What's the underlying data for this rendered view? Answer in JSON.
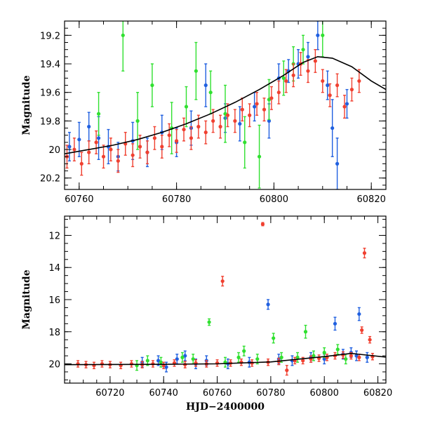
{
  "chart_data": [
    {
      "type": "scatter",
      "panel": "top",
      "xlabel": "",
      "ylabel": "Magnitude",
      "xlim": [
        60757,
        60823
      ],
      "ylim": [
        20.28,
        19.1
      ],
      "inverted_y": true,
      "x_ticks": [
        60760,
        60780,
        60800,
        60820
      ],
      "y_ticks": [
        19.2,
        19.4,
        19.6,
        19.8,
        20,
        20.2
      ],
      "model_curve": {
        "color": "#000000",
        "x": [
          60757,
          60762,
          60767,
          60772,
          60777,
          60782,
          60787,
          60792,
          60797,
          60802,
          60806,
          60809,
          60812,
          60816,
          60820,
          60823
        ],
        "y": [
          20.03,
          20.0,
          19.97,
          19.93,
          19.88,
          19.82,
          19.75,
          19.67,
          19.58,
          19.48,
          19.39,
          19.35,
          19.36,
          19.42,
          19.52,
          19.58
        ]
      },
      "series": [
        {
          "color": "#2060e0",
          "points": [
            [
              60758,
              19.98,
              0.1
            ],
            [
              60760,
              19.93,
              0.12
            ],
            [
              60762,
              19.84,
              0.1
            ],
            [
              60764,
              19.92,
              0.15
            ],
            [
              60766,
              19.98,
              0.12
            ],
            [
              60768,
              20.05,
              0.1
            ],
            [
              60771,
              19.94,
              0.13
            ],
            [
              60774,
              20.02,
              0.1
            ],
            [
              60777,
              19.88,
              0.12
            ],
            [
              60780,
              19.95,
              0.1
            ],
            [
              60783,
              19.85,
              0.12
            ],
            [
              60786,
              19.55,
              0.15
            ],
            [
              60790,
              19.78,
              0.1
            ],
            [
              60793,
              19.82,
              0.12
            ],
            [
              60796,
              19.7,
              0.1
            ],
            [
              60799,
              19.8,
              0.12
            ],
            [
              60801,
              19.5,
              0.1
            ],
            [
              60803,
              19.45,
              0.08
            ],
            [
              60805,
              19.4,
              0.1
            ],
            [
              60807,
              19.35,
              0.1
            ],
            [
              60809,
              19.2,
              0.1
            ],
            [
              60811,
              19.55,
              0.1
            ],
            [
              60812,
              19.85,
              0.2
            ],
            [
              60813,
              20.1,
              0.18
            ],
            [
              60815,
              19.68,
              0.1
            ]
          ]
        },
        {
          "color": "#30e030",
          "points": [
            [
              60764,
              19.75,
              0.15
            ],
            [
              60769,
              19.2,
              0.25
            ],
            [
              60772,
              19.8,
              0.2
            ],
            [
              60775,
              19.55,
              0.15
            ],
            [
              60779,
              19.85,
              0.18
            ],
            [
              60782,
              19.7,
              0.14
            ],
            [
              60784,
              19.45,
              0.2
            ],
            [
              60787,
              19.6,
              0.15
            ],
            [
              60790,
              19.75,
              0.2
            ],
            [
              60794,
              19.95,
              0.18
            ],
            [
              60797,
              20.05,
              0.22
            ],
            [
              60799,
              19.65,
              0.14
            ],
            [
              60802,
              19.5,
              0.12
            ],
            [
              60804,
              19.4,
              0.12
            ],
            [
              60806,
              19.3,
              0.1
            ],
            [
              60810,
              19.2,
              0.15
            ]
          ]
        },
        {
          "color": "#f04030",
          "points": [
            [
              60757.5,
              20.05,
              0.08
            ],
            [
              60759,
              20.0,
              0.08
            ],
            [
              60760.5,
              20.1,
              0.08
            ],
            [
              60762,
              20.02,
              0.08
            ],
            [
              60763.5,
              19.95,
              0.08
            ],
            [
              60765,
              20.05,
              0.08
            ],
            [
              60766.5,
              20.0,
              0.08
            ],
            [
              60768,
              20.08,
              0.08
            ],
            [
              60769.5,
              19.96,
              0.08
            ],
            [
              60771,
              20.04,
              0.08
            ],
            [
              60772.5,
              19.98,
              0.08
            ],
            [
              60774,
              20.02,
              0.08
            ],
            [
              60775.5,
              19.92,
              0.08
            ],
            [
              60777,
              19.98,
              0.08
            ],
            [
              60778.5,
              19.9,
              0.08
            ],
            [
              60780,
              19.94,
              0.08
            ],
            [
              60781.5,
              19.86,
              0.08
            ],
            [
              60783,
              19.92,
              0.08
            ],
            [
              60784.5,
              19.84,
              0.08
            ],
            [
              60786,
              19.88,
              0.08
            ],
            [
              60787.5,
              19.8,
              0.08
            ],
            [
              60789,
              19.84,
              0.08
            ],
            [
              60790.5,
              19.76,
              0.08
            ],
            [
              60792,
              19.8,
              0.08
            ],
            [
              60793.5,
              19.72,
              0.08
            ],
            [
              60795,
              19.76,
              0.08
            ],
            [
              60796.5,
              19.68,
              0.08
            ],
            [
              60798,
              19.72,
              0.08
            ],
            [
              60799.5,
              19.64,
              0.08
            ],
            [
              60801,
              19.6,
              0.08
            ],
            [
              60802.5,
              19.52,
              0.08
            ],
            [
              60804,
              19.48,
              0.08
            ],
            [
              60805.5,
              19.4,
              0.08
            ],
            [
              60807,
              19.45,
              0.08
            ],
            [
              60808.5,
              19.38,
              0.08
            ],
            [
              60810,
              19.52,
              0.08
            ],
            [
              60811.5,
              19.62,
              0.08
            ],
            [
              60813,
              19.55,
              0.08
            ],
            [
              60814.5,
              19.7,
              0.08
            ],
            [
              60816,
              19.58,
              0.08
            ],
            [
              60817.5,
              19.52,
              0.08
            ]
          ]
        }
      ]
    },
    {
      "type": "scatter",
      "panel": "bottom",
      "xlabel": "HJD−2400000",
      "ylabel": "Magnitude",
      "xlim": [
        60703,
        60823
      ],
      "ylim": [
        21.2,
        10.8
      ],
      "inverted_y": true,
      "x_ticks": [
        60720,
        60740,
        60760,
        60780,
        60800,
        60820
      ],
      "y_ticks": [
        12,
        14,
        16,
        18,
        20
      ],
      "model_curve": {
        "color": "#000000",
        "x": [
          60703,
          60740,
          60760,
          60780,
          60800,
          60810,
          60823
        ],
        "y": [
          20.05,
          20.03,
          20.0,
          19.88,
          19.55,
          19.35,
          19.58
        ]
      },
      "series": [
        {
          "color": "#2060e0",
          "points": [
            [
              60732,
              19.9,
              0.3
            ],
            [
              60738,
              19.8,
              0.3
            ],
            [
              60741,
              20.2,
              0.3
            ],
            [
              60745,
              19.7,
              0.3
            ],
            [
              60748,
              19.5,
              0.3
            ],
            [
              60752,
              20.0,
              0.3
            ],
            [
              60756,
              19.8,
              0.3
            ],
            [
              60764,
              20.0,
              0.3
            ],
            [
              60772,
              19.9,
              0.3
            ],
            [
              60779,
              16.3,
              0.3
            ],
            [
              60783,
              19.7,
              0.3
            ],
            [
              60788,
              19.8,
              0.3
            ],
            [
              60795,
              19.6,
              0.3
            ],
            [
              60800,
              19.7,
              0.3
            ],
            [
              60804,
              17.5,
              0.4
            ],
            [
              60807,
              19.4,
              0.3
            ],
            [
              60810,
              19.3,
              0.3
            ],
            [
              60812,
              19.5,
              0.3
            ],
            [
              60813,
              16.9,
              0.4
            ],
            [
              60816,
              19.6,
              0.3
            ]
          ]
        },
        {
          "color": "#30e030",
          "points": [
            [
              60730,
              20.1,
              0.3
            ],
            [
              60734,
              19.8,
              0.3
            ],
            [
              60739,
              19.9,
              0.3
            ],
            [
              60747,
              19.6,
              0.3
            ],
            [
              60751,
              19.7,
              0.3
            ],
            [
              60757,
              17.4,
              0.2
            ],
            [
              60763,
              19.9,
              0.3
            ],
            [
              60768,
              19.6,
              0.3
            ],
            [
              60770,
              19.2,
              0.3
            ],
            [
              60775,
              19.7,
              0.3
            ],
            [
              60781,
              18.4,
              0.3
            ],
            [
              60784,
              19.6,
              0.3
            ],
            [
              60790,
              19.6,
              0.3
            ],
            [
              60793,
              18.0,
              0.4
            ],
            [
              60796,
              19.5,
              0.3
            ],
            [
              60800,
              19.3,
              0.3
            ],
            [
              60805,
              19.1,
              0.3
            ],
            [
              60808,
              19.7,
              0.3
            ]
          ]
        },
        {
          "color": "#f04030",
          "points": [
            [
              60708,
              20.0,
              0.2
            ],
            [
              60711,
              20.05,
              0.2
            ],
            [
              60714,
              20.1,
              0.2
            ],
            [
              60717,
              20.0,
              0.2
            ],
            [
              60720,
              20.05,
              0.2
            ],
            [
              60724,
              20.1,
              0.2
            ],
            [
              60728,
              20.0,
              0.2
            ],
            [
              60732,
              20.05,
              0.2
            ],
            [
              60736,
              20.0,
              0.2
            ],
            [
              60740,
              20.1,
              0.2
            ],
            [
              60744,
              19.95,
              0.2
            ],
            [
              60748,
              20.05,
              0.2
            ],
            [
              60752,
              19.95,
              0.2
            ],
            [
              60756,
              20.0,
              0.2
            ],
            [
              60760,
              19.95,
              0.2
            ],
            [
              60762,
              14.85,
              0.3
            ],
            [
              60765,
              19.95,
              0.2
            ],
            [
              60769,
              19.9,
              0.2
            ],
            [
              60773,
              19.95,
              0.2
            ],
            [
              60777,
              11.3,
              0.1
            ],
            [
              60779,
              19.9,
              0.2
            ],
            [
              60783,
              19.85,
              0.2
            ],
            [
              60786,
              20.4,
              0.3
            ],
            [
              60789,
              19.8,
              0.2
            ],
            [
              60792,
              19.8,
              0.2
            ],
            [
              60795,
              19.7,
              0.2
            ],
            [
              60798,
              19.65,
              0.2
            ],
            [
              60801,
              19.6,
              0.2
            ],
            [
              60804,
              19.5,
              0.2
            ],
            [
              60807,
              19.45,
              0.2
            ],
            [
              60810,
              19.5,
              0.2
            ],
            [
              60813,
              19.6,
              0.2
            ],
            [
              60814,
              17.9,
              0.2
            ],
            [
              60815,
              13.1,
              0.3
            ],
            [
              60817,
              18.5,
              0.2
            ],
            [
              60818,
              19.55,
              0.2
            ]
          ]
        }
      ]
    }
  ]
}
